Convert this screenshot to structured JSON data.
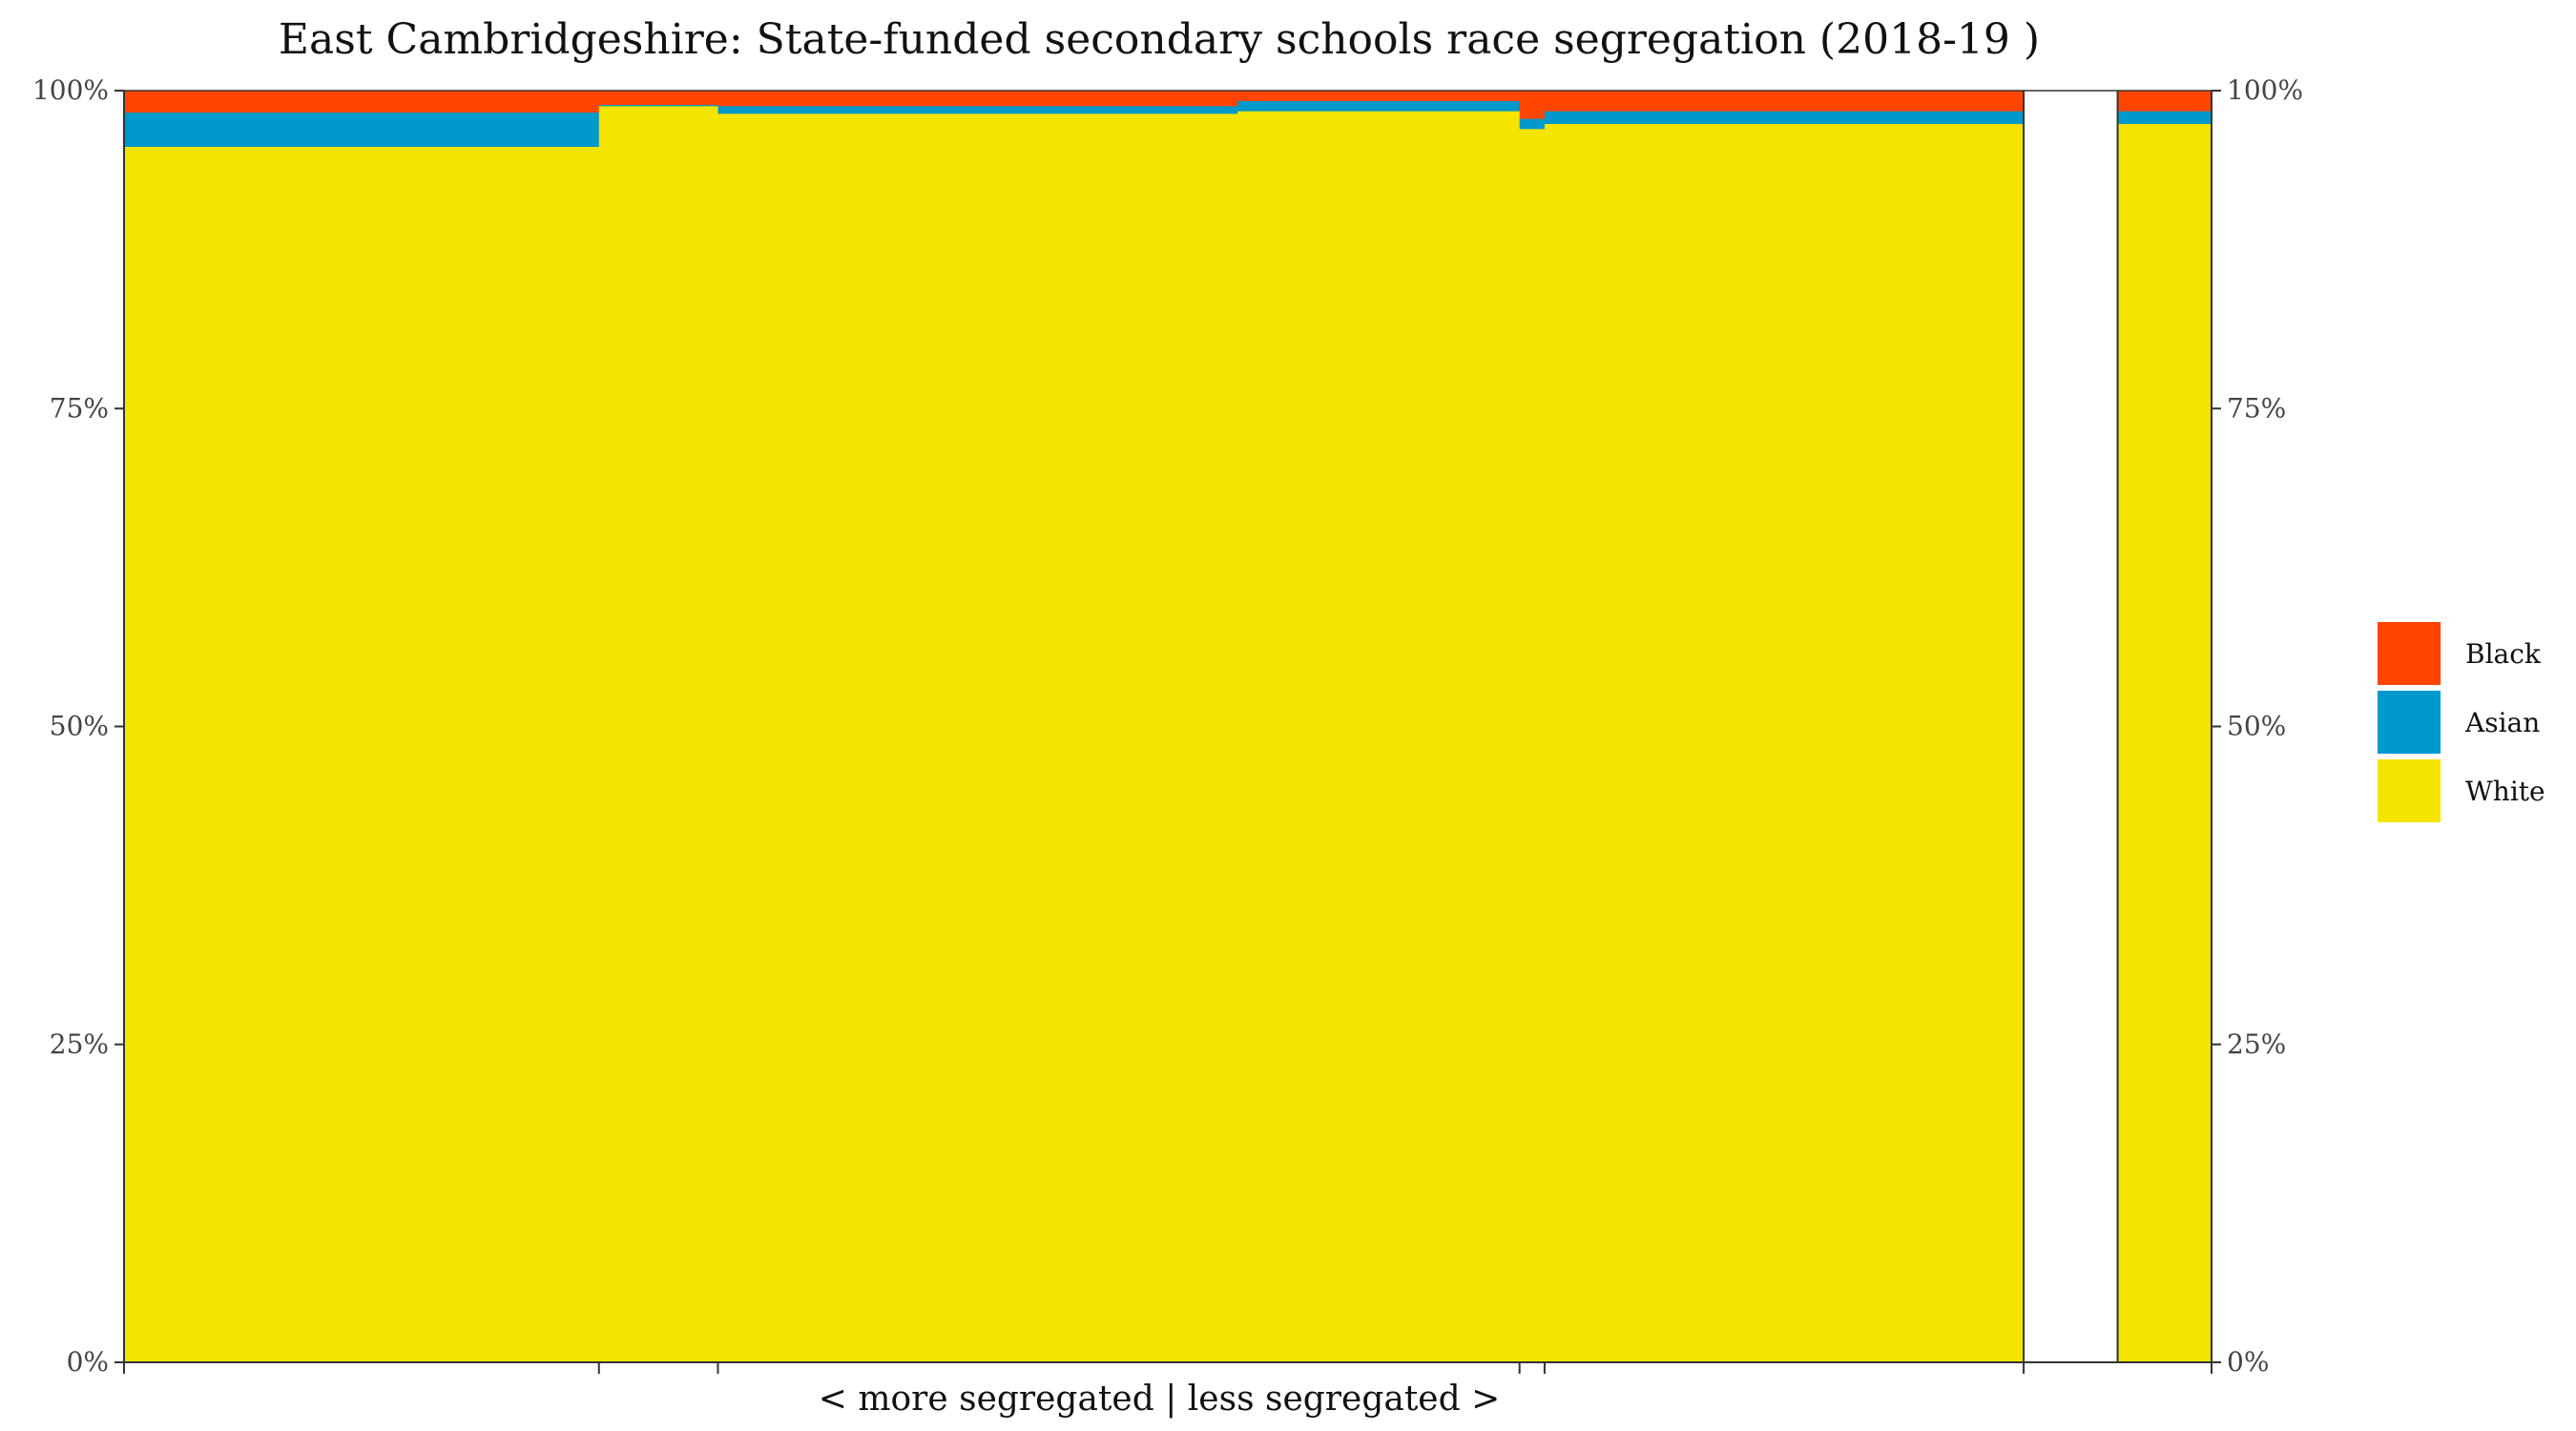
{
  "chart_data": {
    "type": "bar",
    "subtype": "stacked-proportional-marimekko",
    "title": "East Cambridgeshire: State-funded secondary schools race segregation (2018-19 )",
    "xlabel": "< more segregated | less segregated >",
    "ylabel": "",
    "ylim": [
      0,
      100
    ],
    "y_ticks": [
      "0%",
      "25%",
      "50%",
      "75%",
      "100%"
    ],
    "y_tick_values": [
      0,
      25,
      50,
      75,
      100
    ],
    "secondary_y_axis": true,
    "legend_position": "right",
    "grid": false,
    "series_order": [
      "White",
      "Asian",
      "Black"
    ],
    "series": [
      {
        "name": "Black",
        "color": "#FF4500"
      },
      {
        "name": "Asian",
        "color": "#0099CC"
      },
      {
        "name": "White",
        "color": "#F5E400"
      }
    ],
    "schools": [
      {
        "x_start": 0.0,
        "x_end": 22.75,
        "White": 95.6,
        "Asian": 2.7,
        "Black": 1.7
      },
      {
        "x_start": 22.75,
        "x_end": 28.45,
        "White": 98.8,
        "Asian": 0.1,
        "Black": 1.1
      },
      {
        "x_start": 28.45,
        "x_end": 53.35,
        "White": 98.2,
        "Asian": 0.6,
        "Black": 1.2
      },
      {
        "x_start": 53.35,
        "x_end": 66.85,
        "White": 98.4,
        "Asian": 0.8,
        "Black": 0.8
      },
      {
        "x_start": 66.85,
        "x_end": 68.05,
        "White": 97.0,
        "Asian": 0.8,
        "Black": 2.2
      },
      {
        "x_start": 68.05,
        "x_end": 91.0,
        "White": 97.4,
        "Asian": 1.0,
        "Black": 1.6
      },
      {
        "x_start": 91.0,
        "x_end": 95.5,
        "White": null,
        "Asian": null,
        "Black": null
      },
      {
        "x_start": 95.5,
        "x_end": 100.0,
        "White": 97.4,
        "Asian": 1.0,
        "Black": 1.6
      }
    ],
    "x_tick_positions": [
      0.0,
      22.75,
      28.45,
      66.85,
      68.05,
      91.0,
      100.0
    ]
  }
}
